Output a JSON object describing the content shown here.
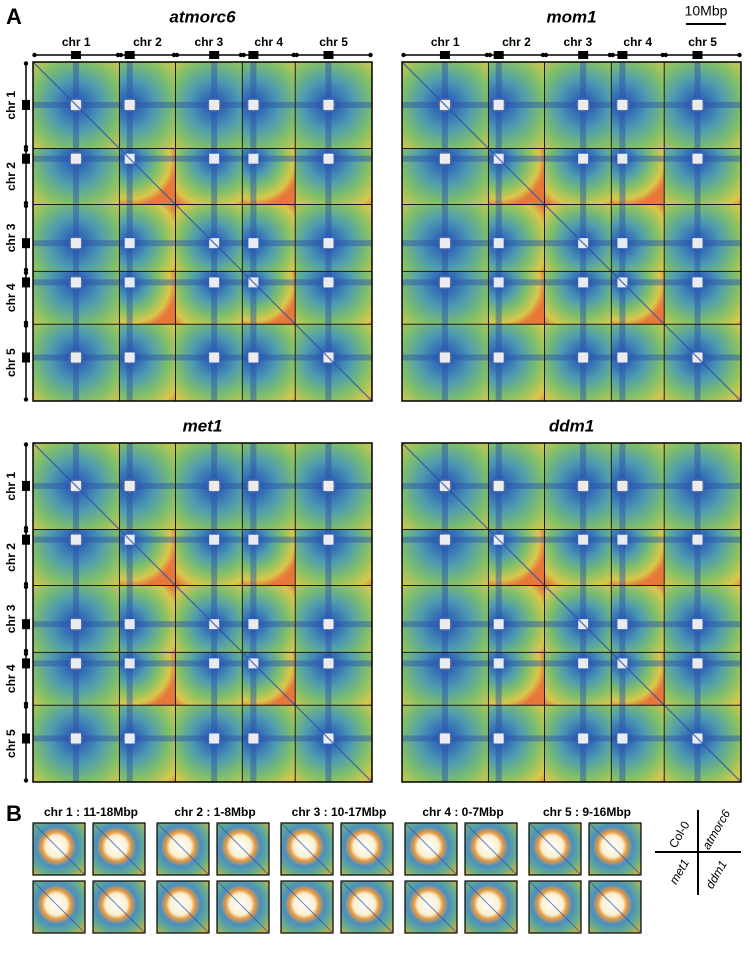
{
  "panel_a": {
    "label": "A",
    "scale_bar": "10Mbp",
    "chromosomes": [
      "chr 1",
      "chr 2",
      "chr 3",
      "chr 4",
      "chr 5"
    ],
    "maps": [
      {
        "title": "atmorc6"
      },
      {
        "title": "mom1"
      },
      {
        "title": "met1"
      },
      {
        "title": "ddm1"
      }
    ]
  },
  "panel_b": {
    "label": "B",
    "regions": [
      "chr 1 : 11-18Mbp",
      "chr 2 : 1-8Mbp",
      "chr 3 : 10-17Mbp",
      "chr 4 : 0-7Mbp",
      "chr 5 : 9-16Mbp"
    ],
    "legend": [
      "Col-0",
      "atmorc6",
      "met1",
      "ddm1"
    ]
  }
}
